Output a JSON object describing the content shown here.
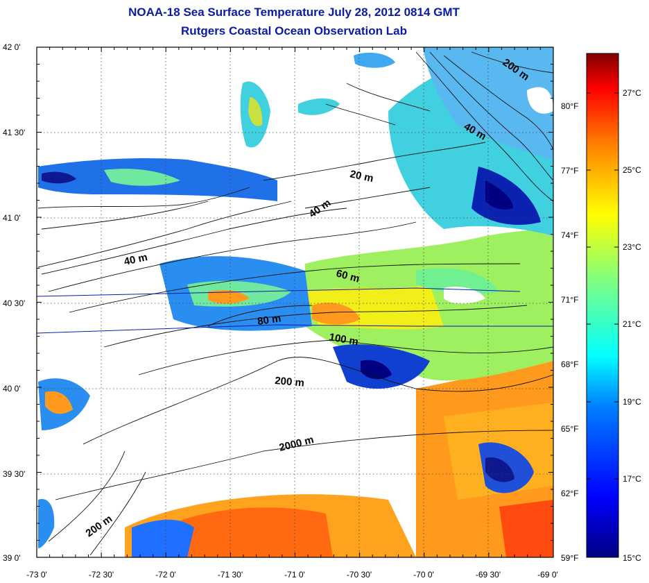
{
  "title_line1": "NOAA-18 Sea Surface Temperature July 28, 2012 0814 GMT",
  "title_line2": "Rutgers Coastal Ocean Observation Lab",
  "lat_labels": [
    "42 0'",
    "41 30'",
    "41 0'",
    "40 30'",
    "40 0'",
    "39 30'",
    "39 0'"
  ],
  "lon_labels": [
    "-73 0'",
    "-72 30'",
    "-72 0'",
    "-71 30'",
    "-71 0'",
    "-70 30'",
    "-70 0'",
    "-69 30'",
    "-69 0'"
  ],
  "colorbar": {
    "fahrenheit_labels": [
      "80°F",
      "77°F",
      "74°F",
      "71°F",
      "68°F",
      "65°F",
      "62°F",
      "59°F"
    ],
    "celsius_labels": [
      "27°C",
      "25°C",
      "23°C",
      "21°C",
      "19°C",
      "17°C",
      "15°C"
    ],
    "colors": [
      "#000080",
      "#0000ff",
      "#0080ff",
      "#00ffff",
      "#80ff80",
      "#ffff00",
      "#ff8000",
      "#ff0000",
      "#800000"
    ]
  },
  "contour_labels": [
    "200 m",
    "40 m",
    "20 m",
    "40 m",
    "40 m",
    "60 m",
    "80 m",
    "100 m",
    "200 m",
    "2000 m",
    "200 m"
  ]
}
